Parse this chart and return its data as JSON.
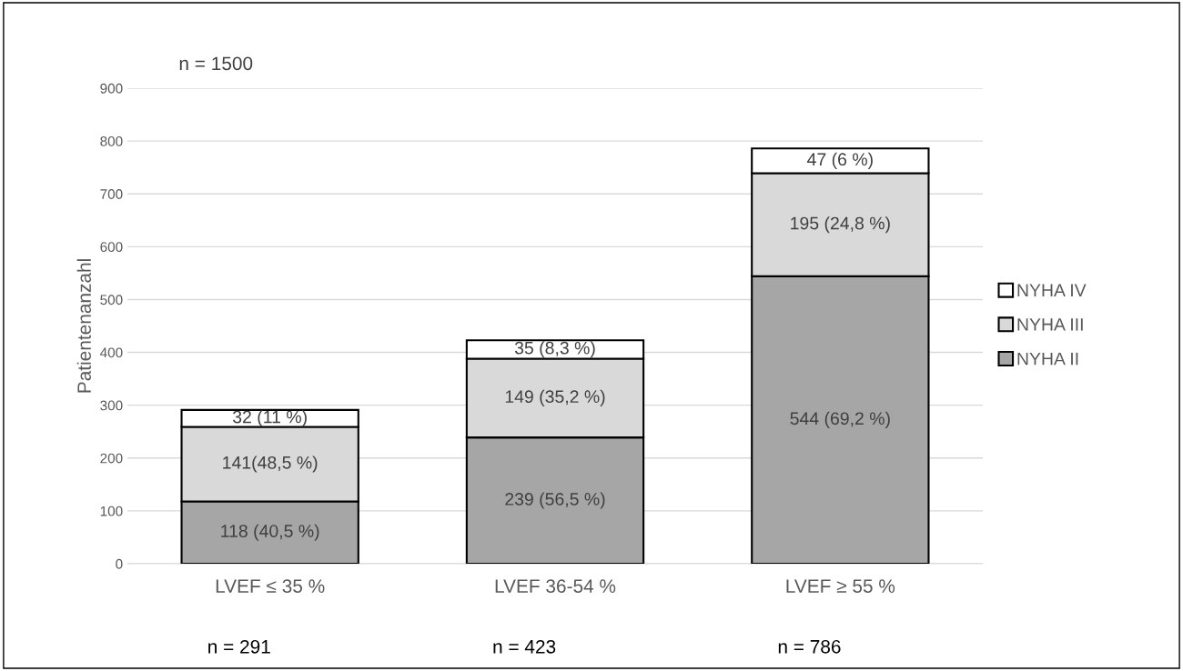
{
  "chart_data": {
    "type": "bar",
    "stacked": true,
    "ylabel": "Patientenanzahl",
    "categories": [
      "LVEF ≤ 35 %",
      "LVEF 36-54 %",
      "LVEF ≥ 55 %"
    ],
    "series": [
      {
        "name": "NYHA II",
        "color": "#a6a6a6",
        "values": [
          118,
          239,
          544
        ],
        "value_labels": [
          "118 (40,5 %)",
          "239 (56,5 %)",
          "544 (69,2 %)"
        ]
      },
      {
        "name": "NYHA III",
        "color": "#d9d9d9",
        "values": [
          141,
          149,
          195
        ],
        "value_labels": [
          "141(48,5 %)",
          "149 (35,2 %)",
          "195 (24,8 %)"
        ]
      },
      {
        "name": "NYHA IV",
        "color": "#ffffff",
        "values": [
          32,
          35,
          47
        ],
        "value_labels": [
          "32 (11 %)",
          "35 (8,3 %)",
          "47 (6 %)"
        ]
      }
    ],
    "ylim": [
      0,
      900
    ],
    "yticks": [
      0,
      100,
      200,
      300,
      400,
      500,
      600,
      700,
      800,
      900
    ],
    "grid": "y",
    "legend": "right",
    "annotations": [
      "n = 1500",
      "n = 291",
      "n = 423",
      "n = 786"
    ]
  }
}
